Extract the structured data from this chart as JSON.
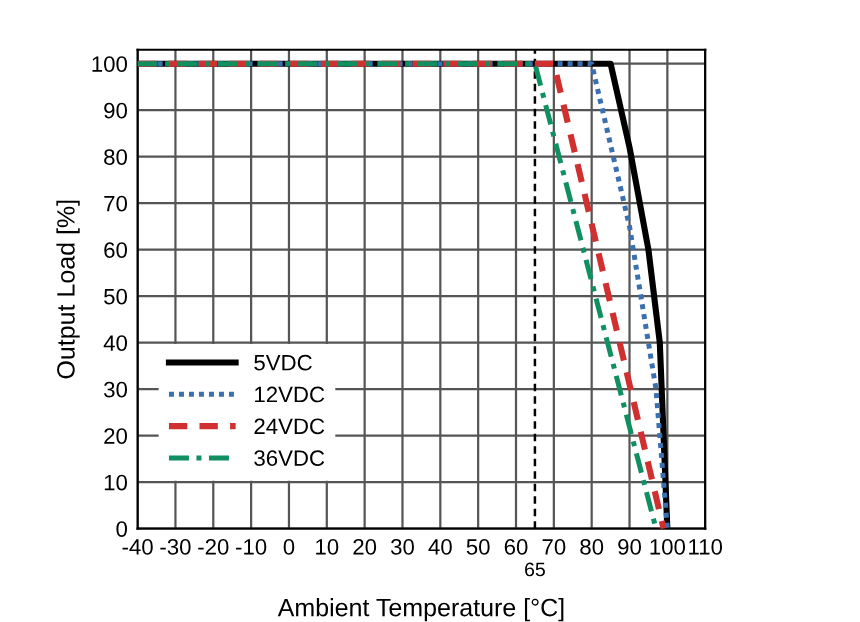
{
  "chart_data": {
    "type": "line",
    "xlabel": "Ambient Temperature [°C]",
    "ylabel": "Output Load [%]",
    "series": [
      {
        "name": "5VDC",
        "color": "#000000",
        "line_style": "solid",
        "x": [
          -40,
          85,
          90,
          95,
          98,
          99,
          100
        ],
        "values": [
          100,
          100,
          82,
          60,
          40,
          20,
          0
        ]
      },
      {
        "name": "12VDC",
        "color": "#3a6fb0",
        "line_style": "dotted",
        "x": [
          -40,
          80,
          90,
          97,
          100
        ],
        "values": [
          100,
          100,
          65,
          30,
          0
        ]
      },
      {
        "name": "24VDC",
        "color": "#d03030",
        "line_style": "dashed",
        "x": [
          -40,
          70,
          99
        ],
        "values": [
          100,
          100,
          0
        ]
      },
      {
        "name": "36VDC",
        "color": "#109060",
        "line_style": "dashdot",
        "x": [
          -40,
          65,
          97
        ],
        "values": [
          100,
          100,
          0
        ]
      }
    ],
    "ref_lines": [
      {
        "axis": "x",
        "value": 65,
        "label": "65",
        "color": "#000000",
        "line_style": "dashed"
      }
    ],
    "xlim": [
      -40,
      110
    ],
    "xticks": [
      -40,
      -30,
      -20,
      -10,
      0,
      10,
      20,
      30,
      40,
      50,
      60,
      70,
      80,
      90,
      100,
      110
    ],
    "ylim": [
      0,
      103
    ],
    "yticks": [
      0,
      10,
      20,
      30,
      40,
      50,
      60,
      70,
      80,
      90,
      100
    ],
    "grid": true,
    "legend": "bottom left",
    "marker": "none"
  }
}
